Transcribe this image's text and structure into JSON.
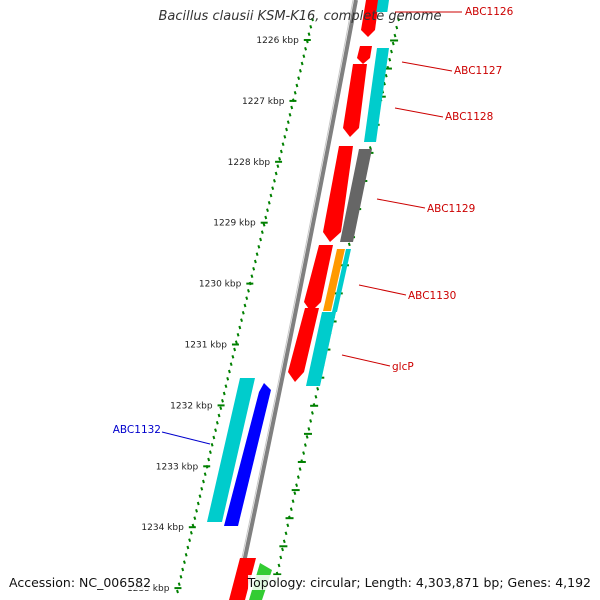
{
  "title": "Bacillus clausii KSM-K16, complete genome",
  "footer": {
    "accession": "Accession: NC_006582",
    "summary": "Topology: circular; Length: 4,303,871 bp; Genes: 4,192"
  },
  "colors": {
    "backbone": "#808080",
    "tick": "#008000",
    "forward_gene_label": "#cc0000",
    "reverse_gene_label": "#0000cc",
    "red": "#ff0000",
    "cyan": "#00cccc",
    "blue": "#0000ff",
    "gray": "#666666",
    "orange": "#ff9900",
    "green": "#33cc33"
  },
  "ticks": [
    {
      "label": "1226 kbp"
    },
    {
      "label": "1227 kbp"
    },
    {
      "label": "1228 kbp"
    },
    {
      "label": "1229 kbp"
    },
    {
      "label": "1230 kbp"
    },
    {
      "label": "1231 kbp"
    },
    {
      "label": "1232 kbp"
    },
    {
      "label": "1233 kbp"
    },
    {
      "label": "1234 kbp"
    },
    {
      "label": "1235 kbp"
    }
  ],
  "gene_labels": [
    {
      "name": "ABC1126",
      "strand": "forward"
    },
    {
      "name": "ABC1127",
      "strand": "forward"
    },
    {
      "name": "ABC1128",
      "strand": "forward"
    },
    {
      "name": "ABC1129",
      "strand": "forward"
    },
    {
      "name": "ABC1130",
      "strand": "forward"
    },
    {
      "name": "glcP",
      "strand": "forward"
    },
    {
      "name": "ABC1132",
      "strand": "reverse"
    }
  ]
}
